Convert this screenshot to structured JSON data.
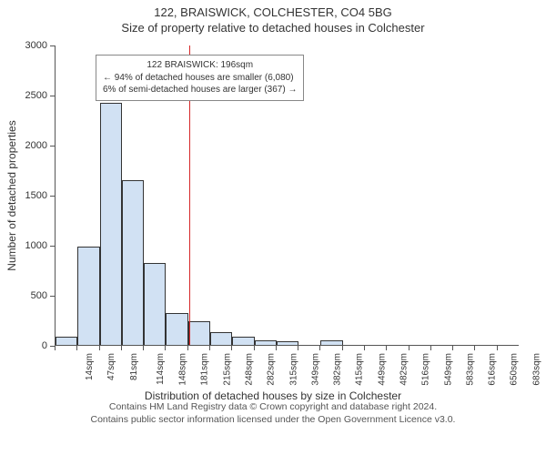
{
  "supertitle": "122, BRAISWICK, COLCHESTER, CO4 5BG",
  "title": "Size of property relative to detached houses in Colchester",
  "chart": {
    "type": "histogram",
    "ylabel": "Number of detached properties",
    "xlabel": "Distribution of detached houses by size in Colchester",
    "ylim": [
      0,
      3000
    ],
    "ytick_step": 500,
    "grid_color": "#e0e0e0",
    "background_color": "#ffffff",
    "axis_color": "#555555",
    "bar_fill": "#d1e1f3",
    "bar_border": "#333333",
    "bar_border_width": 0.5,
    "refline_color": "#d62728",
    "refline_x_category": "215sqm",
    "refline_position_in_bin": 0.07,
    "categories": [
      "14sqm",
      "47sqm",
      "81sqm",
      "114sqm",
      "148sqm",
      "181sqm",
      "215sqm",
      "248sqm",
      "282sqm",
      "315sqm",
      "349sqm",
      "382sqm",
      "415sqm",
      "449sqm",
      "482sqm",
      "516sqm",
      "549sqm",
      "583sqm",
      "616sqm",
      "650sqm",
      "683sqm"
    ],
    "values": [
      80,
      980,
      2420,
      1650,
      820,
      320,
      240,
      130,
      80,
      50,
      40,
      0,
      45,
      0,
      0,
      0,
      0,
      0,
      0,
      0,
      0
    ]
  },
  "annotation": {
    "line1": "122 BRAISWICK: 196sqm",
    "line2": "← 94% of detached houses are smaller (6,080)",
    "line3": "6% of semi-detached houses are larger (367) →",
    "border_color": "#888888",
    "background": "#ffffff",
    "fontsize": 10
  },
  "footer": {
    "line1": "Contains HM Land Registry data © Crown copyright and database right 2024.",
    "line2": "Contains public sector information licensed under the Open Government Licence v3.0."
  },
  "typography": {
    "title_fontsize": 13,
    "label_fontsize": 12,
    "tick_fontsize": 11,
    "xtick_fontsize": 10,
    "footer_fontsize": 10.5,
    "text_color": "#333333"
  }
}
